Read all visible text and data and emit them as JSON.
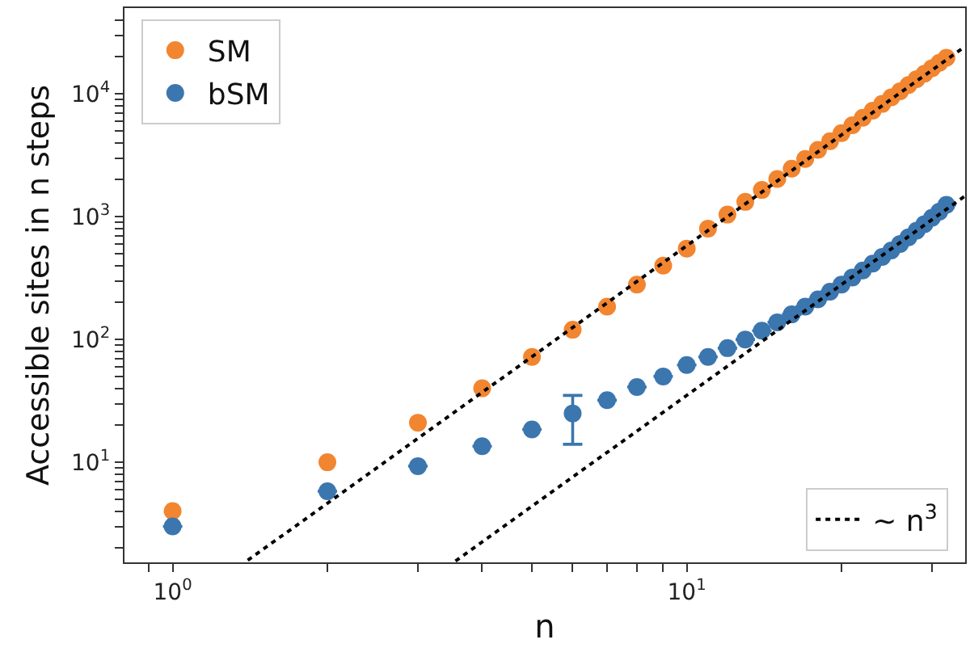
{
  "chart_data": {
    "type": "scatter",
    "xlabel": "n",
    "ylabel": "Accessible sites in n steps",
    "log": "xy",
    "grid": false,
    "marker": "circle",
    "legend": [
      "top left",
      "bottom right"
    ],
    "x": [
      1,
      2,
      3,
      4,
      5,
      6,
      7,
      8,
      9,
      10,
      11,
      12,
      13,
      14,
      15,
      16,
      17,
      18,
      19,
      20,
      21,
      22,
      23,
      24,
      25,
      26,
      27,
      28,
      29,
      30,
      31,
      32
    ],
    "xlim": [
      0.806,
      34.8
    ],
    "ylim": [
      1.53,
      50000
    ],
    "xticks": [
      {
        "value": 0.9,
        "label": null
      },
      {
        "value": 1,
        "label": "10$^{0}$"
      },
      {
        "value": 2,
        "label": null
      },
      {
        "value": 3,
        "label": null
      },
      {
        "value": 4,
        "label": null
      },
      {
        "value": 5,
        "label": null
      },
      {
        "value": 6,
        "label": null
      },
      {
        "value": 7,
        "label": null
      },
      {
        "value": 8,
        "label": null
      },
      {
        "value": 9,
        "label": null
      },
      {
        "value": 10,
        "label": "10$^{1}$"
      },
      {
        "value": 20,
        "label": null
      },
      {
        "value": 30,
        "label": null
      }
    ],
    "yticks": [
      {
        "value": 2,
        "label": null
      },
      {
        "value": 3,
        "label": null
      },
      {
        "value": 4,
        "label": null
      },
      {
        "value": 5,
        "label": null
      },
      {
        "value": 6,
        "label": null
      },
      {
        "value": 7,
        "label": null
      },
      {
        "value": 8,
        "label": null
      },
      {
        "value": 9,
        "label": null
      },
      {
        "value": 10,
        "label": "10$^{1}$"
      },
      {
        "value": 20,
        "label": null
      },
      {
        "value": 30,
        "label": null
      },
      {
        "value": 40,
        "label": null
      },
      {
        "value": 50,
        "label": null
      },
      {
        "value": 60,
        "label": null
      },
      {
        "value": 70,
        "label": null
      },
      {
        "value": 80,
        "label": null
      },
      {
        "value": 90,
        "label": null
      },
      {
        "value": 100,
        "label": "10$^{2}$"
      },
      {
        "value": 200,
        "label": null
      },
      {
        "value": 300,
        "label": null
      },
      {
        "value": 400,
        "label": null
      },
      {
        "value": 500,
        "label": null
      },
      {
        "value": 600,
        "label": null
      },
      {
        "value": 700,
        "label": null
      },
      {
        "value": 800,
        "label": null
      },
      {
        "value": 900,
        "label": null
      },
      {
        "value": 1000,
        "label": "10$^{3}$"
      },
      {
        "value": 2000,
        "label": null
      },
      {
        "value": 3000,
        "label": null
      },
      {
        "value": 4000,
        "label": null
      },
      {
        "value": 5000,
        "label": null
      },
      {
        "value": 6000,
        "label": null
      },
      {
        "value": 7000,
        "label": null
      },
      {
        "value": 8000,
        "label": null
      },
      {
        "value": 9000,
        "label": null
      },
      {
        "value": 10000,
        "label": "10$^{4}$"
      },
      {
        "value": 20000,
        "label": null
      },
      {
        "value": 30000,
        "label": null
      },
      {
        "value": 40000,
        "label": null
      }
    ],
    "series": [
      {
        "name": "SM",
        "color": "#f28530",
        "values": [
          4,
          10,
          21,
          40,
          72,
          120,
          185,
          280,
          400,
          550,
          800,
          1040,
          1320,
          1650,
          2030,
          2460,
          2950,
          3500,
          4120,
          4800,
          5560,
          6390,
          7300,
          8290,
          9380,
          10500,
          11800,
          13200,
          14600,
          16200,
          17900,
          19700
        ]
      },
      {
        "name": "bSM",
        "color": "#3b76af",
        "values": [
          3,
          5.8,
          9.3,
          13.5,
          18.5,
          25,
          32,
          41,
          50,
          62,
          72,
          85,
          100,
          118,
          138,
          160,
          185,
          212,
          245,
          280,
          320,
          365,
          415,
          470,
          530,
          600,
          680,
          770,
          870,
          980,
          1100,
          1250
        ],
        "errors": [
          null,
          null,
          null,
          null,
          null,
          [
            14,
            35
          ],
          null,
          null,
          null,
          null,
          null,
          null,
          null,
          null,
          null,
          null,
          null,
          null,
          null,
          null,
          null,
          null,
          null,
          null,
          null,
          null,
          null,
          null,
          null,
          null,
          null,
          null
        ]
      },
      {
        "type": "line",
        "name": "∼ n$^{3}$",
        "color": "#000000",
        "line_style": "dotted",
        "marker": "none",
        "x": [
          1.4,
          34.8
        ],
        "values": [
          1.59,
          24400
        ]
      },
      {
        "type": "line",
        "color": "#000000",
        "line_style": "dotted",
        "marker": "none",
        "x": [
          3.55,
          34.8
        ],
        "values": [
          1.57,
          1475
        ]
      }
    ]
  }
}
